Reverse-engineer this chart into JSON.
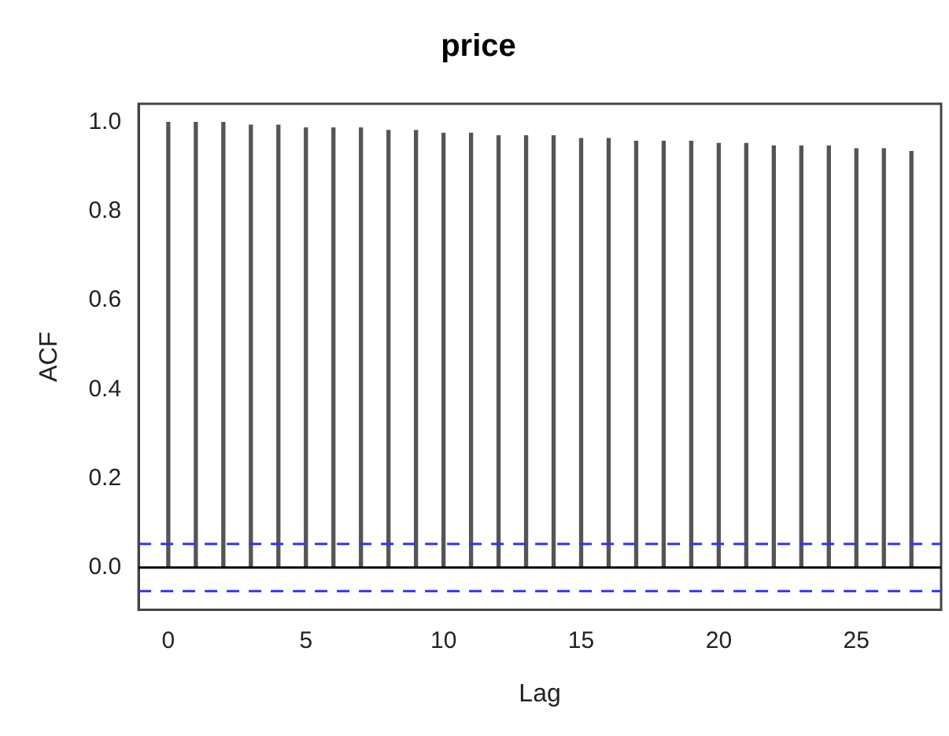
{
  "chart_data": {
    "type": "bar",
    "title": "price",
    "xlabel": "Lag",
    "ylabel": "ACF",
    "x": [
      0,
      1,
      2,
      3,
      4,
      5,
      6,
      7,
      8,
      9,
      10,
      11,
      12,
      13,
      14,
      15,
      16,
      17,
      18,
      19,
      20,
      21,
      22,
      23,
      24,
      25,
      26,
      27
    ],
    "values": [
      1.0,
      1.0,
      1.0,
      0.994,
      0.994,
      0.988,
      0.988,
      0.988,
      0.982,
      0.982,
      0.976,
      0.976,
      0.97,
      0.97,
      0.97,
      0.964,
      0.964,
      0.958,
      0.958,
      0.958,
      0.953,
      0.953,
      0.947,
      0.947,
      0.947,
      0.941,
      0.941,
      0.935
    ],
    "color": "#555555",
    "xlim": [
      -1.08,
      28.08
    ],
    "xticks": [
      0,
      5,
      10,
      15,
      20,
      25
    ],
    "ylim": [
      -0.095,
      1.042
    ],
    "yticks": [
      {
        "value": 0,
        "label": "0.0"
      },
      {
        "value": 0.2,
        "label": "0.2"
      },
      {
        "value": 0.4,
        "label": "0.4"
      },
      {
        "value": 0.6,
        "label": "0.6"
      },
      {
        "value": 0.8,
        "label": "0.8"
      },
      {
        "value": 1,
        "label": "1.0"
      }
    ],
    "ref_lines": [
      {
        "axis": "y",
        "value": 0,
        "color": "#000000",
        "line_style": "solid"
      },
      {
        "axis": "y",
        "value": 0.053,
        "color": "#3333ff",
        "line_style": "dashed"
      },
      {
        "axis": "y",
        "value": -0.053,
        "color": "#3333ff",
        "line_style": "dashed"
      }
    ],
    "grid": false,
    "legend": false
  }
}
